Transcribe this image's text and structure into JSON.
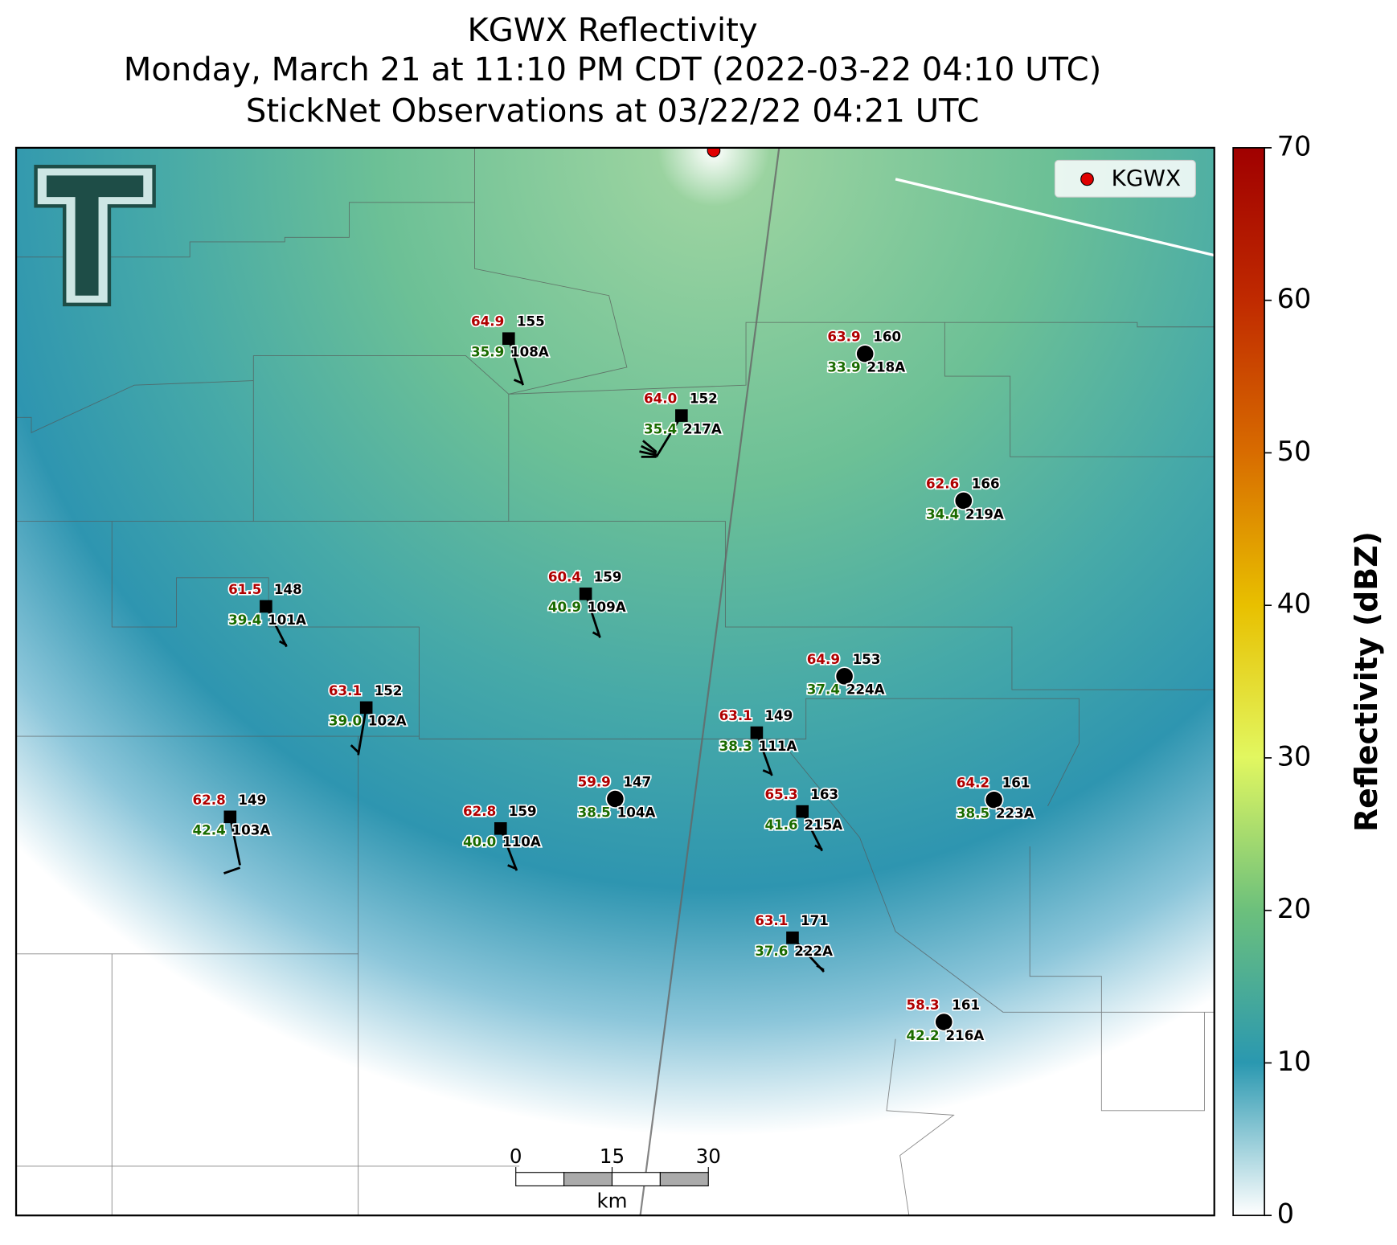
{
  "title": [
    "KGWX Reflectivity",
    "Monday, March 21 at 11:10 PM CDT (2022-03-22 04:10 UTC)",
    "StickNet Observations at 03/22/22 04:21 UTC"
  ],
  "legend": {
    "label": "KGWX"
  },
  "colorbar": {
    "label": "Reflectivity (dBZ)",
    "lim": [
      0,
      70
    ],
    "ticks": [
      0,
      10,
      20,
      30,
      40,
      50,
      60,
      70
    ]
  },
  "scale_bar": {
    "ticks": [
      0,
      15,
      30
    ],
    "unit": "km"
  },
  "stations": [
    {
      "id": "108A",
      "temperature": "64.9",
      "pressure": "155",
      "dewpoint": "35.9"
    },
    {
      "id": "217A",
      "temperature": "64.0",
      "pressure": "152",
      "dewpoint": "35.4"
    },
    {
      "id": "218A",
      "temperature": "63.9",
      "pressure": "160",
      "dewpoint": "33.9"
    },
    {
      "id": "219A",
      "temperature": "62.6",
      "pressure": "166",
      "dewpoint": "34.4"
    },
    {
      "id": "101A",
      "temperature": "61.5",
      "pressure": "148",
      "dewpoint": "39.4"
    },
    {
      "id": "109A",
      "temperature": "60.4",
      "pressure": "159",
      "dewpoint": "40.9"
    },
    {
      "id": "224A",
      "temperature": "64.9",
      "pressure": "153",
      "dewpoint": "37.4"
    },
    {
      "id": "102A",
      "temperature": "63.1",
      "pressure": "152",
      "dewpoint": "39.0"
    },
    {
      "id": "111A",
      "temperature": "63.1",
      "pressure": "149",
      "dewpoint": "38.3"
    },
    {
      "id": "103A",
      "temperature": "62.8",
      "pressure": "149",
      "dewpoint": "42.4"
    },
    {
      "id": "104A",
      "temperature": "59.9",
      "pressure": "147",
      "dewpoint": "38.5"
    },
    {
      "id": "110A",
      "temperature": "62.8",
      "pressure": "159",
      "dewpoint": "40.0"
    },
    {
      "id": "215A",
      "temperature": "65.3",
      "pressure": "163",
      "dewpoint": "41.6"
    },
    {
      "id": "223A",
      "temperature": "64.2",
      "pressure": "161",
      "dewpoint": "38.5"
    },
    {
      "id": "222A",
      "temperature": "63.1",
      "pressure": "171",
      "dewpoint": "37.6"
    },
    {
      "id": "216A",
      "temperature": "58.3",
      "pressure": "161",
      "dewpoint": "42.2"
    }
  ]
}
